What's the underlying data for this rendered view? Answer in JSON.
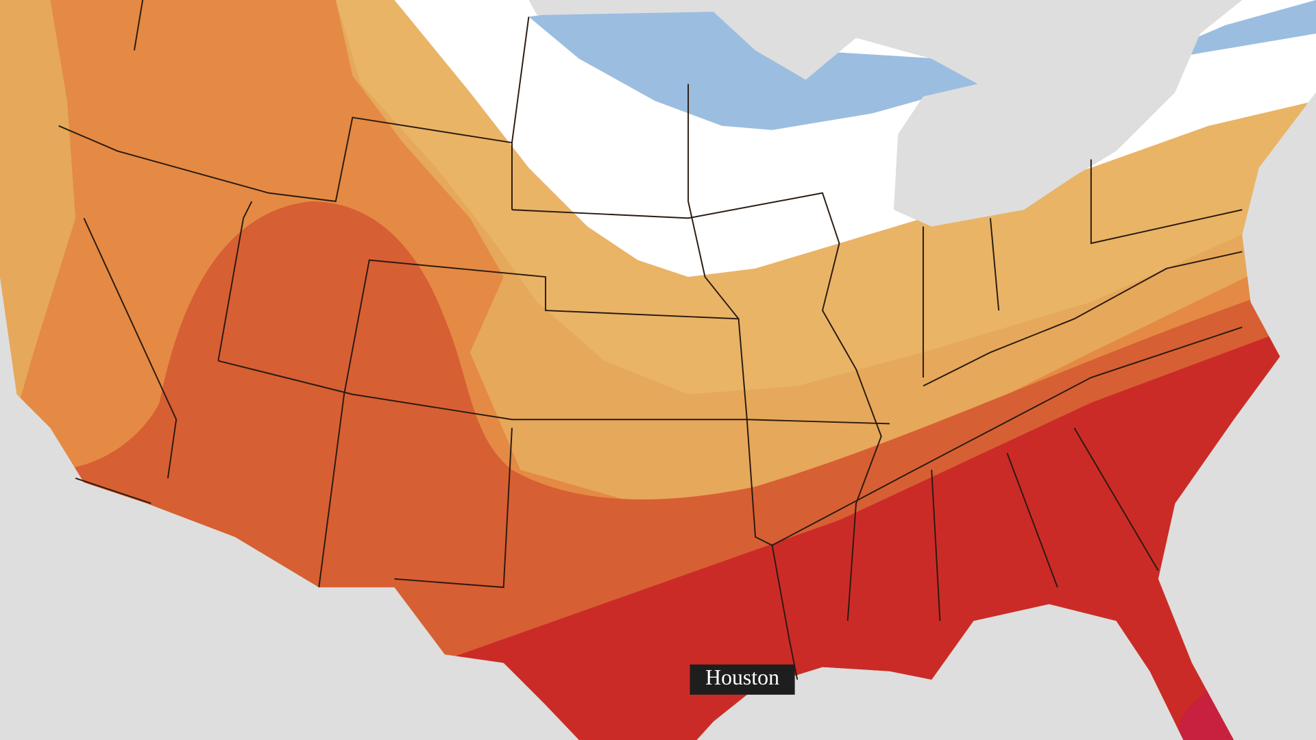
{
  "map": {
    "city_label": "Houston"
  }
}
